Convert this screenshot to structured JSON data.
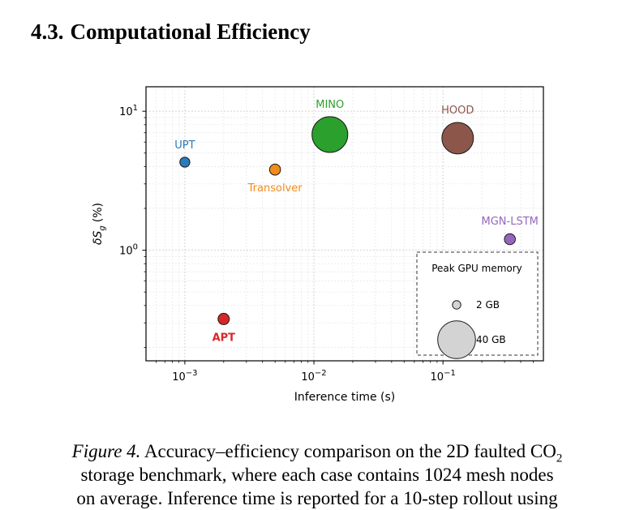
{
  "section": {
    "number": "4.3.",
    "title": "Computational Efficiency"
  },
  "chart_data": {
    "type": "scatter",
    "title": "",
    "xlabel": "Inference time (s)",
    "ylabel_main": "δS",
    "ylabel_sub": "g",
    "ylabel_unit": "(%)",
    "x_scale": "log",
    "y_scale": "log",
    "xlim": [
      0.0005,
      0.6
    ],
    "ylim": [
      0.16,
      15
    ],
    "grid": true,
    "x_ticks": [
      {
        "value": 0.001,
        "base": "10",
        "exp": "−3"
      },
      {
        "value": 0.01,
        "base": "10",
        "exp": "−2"
      },
      {
        "value": 0.1,
        "base": "10",
        "exp": "−1"
      }
    ],
    "y_ticks": [
      {
        "value": 1,
        "base": "10",
        "exp": "0"
      },
      {
        "value": 10,
        "base": "10",
        "exp": "1"
      }
    ],
    "points": [
      {
        "label": "UPT",
        "x": 0.001,
        "y": 4.3,
        "memory_gb": 2.8,
        "color": "#2b7bb9",
        "label_color": "#2b7bb9",
        "label_pos": "above",
        "bold": false
      },
      {
        "label": "Transolver",
        "x": 0.005,
        "y": 3.8,
        "memory_gb": 3.4,
        "color": "#f28a1c",
        "label_color": "#f28a1c",
        "label_pos": "below",
        "bold": false
      },
      {
        "label": "MINO",
        "x": 0.0133,
        "y": 6.8,
        "memory_gb": 36,
        "color": "#2ca02c",
        "label_color": "#2ca02c",
        "label_pos": "above",
        "bold": false
      },
      {
        "label": "HOOD",
        "x": 0.13,
        "y": 6.4,
        "memory_gb": 28,
        "color": "#8c564b",
        "label_color": "#8c564b",
        "label_pos": "above",
        "bold": false
      },
      {
        "label": "MGN-LSTM",
        "x": 0.33,
        "y": 1.2,
        "memory_gb": 3.4,
        "color": "#9467bd",
        "label_color": "#9467bd",
        "label_pos": "above",
        "bold": false
      },
      {
        "label": "APT",
        "x": 0.002,
        "y": 0.32,
        "memory_gb": 3.6,
        "color": "#d62728",
        "label_color": "#d62728",
        "label_pos": "below",
        "bold": true
      }
    ],
    "legend": {
      "title": "Peak GPU memory",
      "placement": "bottom-right",
      "entries": [
        {
          "label": "2 GB",
          "memory_gb": 2
        },
        {
          "label": "40 GB",
          "memory_gb": 40
        }
      ],
      "marker_color": "#d3d3d3"
    }
  },
  "caption": {
    "label": "Figure 4.",
    "line1_text": "Accuracy–efficiency comparison on the 2D faulted CO",
    "line1_sub": "2",
    "line2": "storage benchmark, where each case contains 1024 mesh nodes",
    "line3": "on average. Inference time is reported for a 10-step rollout using"
  }
}
